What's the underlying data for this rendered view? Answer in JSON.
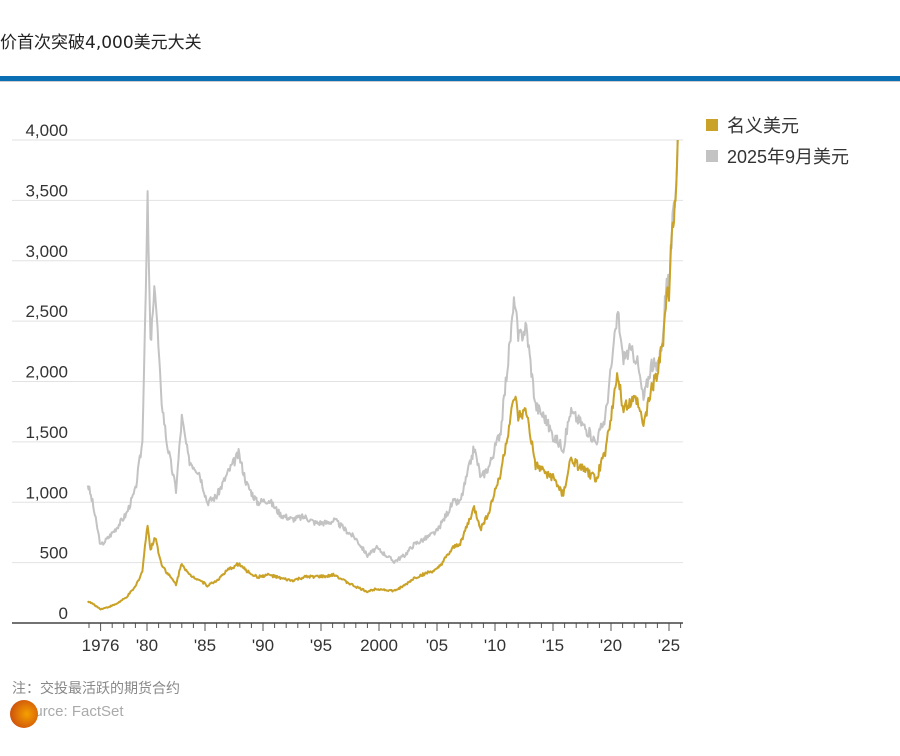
{
  "title": "价首次突破4,000美元大关",
  "legend": [
    {
      "label": "名义美元",
      "color": "#c9a227"
    },
    {
      "label": "2025年9月美元",
      "color": "#c3c3c3"
    }
  ],
  "note": "注：交投最活跃的期货合约",
  "source": "Source: FactSet",
  "chart_data": {
    "type": "line",
    "title": "价首次突破4,000美元大关",
    "xlabel": "",
    "ylabel": "",
    "ylim": [
      0,
      4000
    ],
    "xlim": [
      1974,
      2026.5
    ],
    "yticks": [
      0,
      500,
      1000,
      1500,
      2000,
      2500,
      3000,
      3500,
      4000
    ],
    "ytick_labels": [
      "0",
      "500",
      "1,000",
      "1,500",
      "2,000",
      "2,500",
      "3,000",
      "3,500",
      "4,000"
    ],
    "xticks": [
      1976,
      1980,
      1985,
      1990,
      1995,
      2000,
      2005,
      2010,
      2015,
      2020,
      2025
    ],
    "xtick_labels": [
      "1976",
      "'80",
      "'85",
      "'90",
      "'95",
      "2000",
      "'05",
      "'10",
      "'15",
      "'20",
      "'25"
    ],
    "grid": true,
    "legend_position": "top-right",
    "series": [
      {
        "name": "2025年9月美元",
        "color": "#c3c3c3",
        "x": [
          1974.9,
          1975.3,
          1976.0,
          1976.6,
          1977.3,
          1978.2,
          1979.0,
          1979.6,
          1980.05,
          1980.3,
          1980.7,
          1981.2,
          1981.7,
          1982.5,
          1983.0,
          1983.6,
          1984.5,
          1985.2,
          1986.0,
          1987.0,
          1987.9,
          1988.6,
          1989.5,
          1990.5,
          1991.5,
          1992.5,
          1993.6,
          1994.5,
          1995.5,
          1996.2,
          1997.0,
          1998.0,
          1999.0,
          1999.8,
          2000.5,
          2001.3,
          2002.2,
          2003.0,
          2004.0,
          2005.0,
          2006.4,
          2007.0,
          2008.2,
          2008.8,
          2009.5,
          2010.5,
          2011.7,
          2012.0,
          2012.7,
          2013.5,
          2014.3,
          2015.0,
          2015.9,
          2016.5,
          2017.5,
          2018.7,
          2019.5,
          2020.6,
          2021.0,
          2021.6,
          2022.2,
          2022.8,
          2023.5,
          2024.0,
          2024.5,
          2024.8,
          2025.0,
          2025.3,
          2025.5,
          2025.75
        ],
        "values": [
          1150,
          1000,
          640,
          700,
          780,
          900,
          1100,
          1500,
          3480,
          2300,
          2800,
          1900,
          1500,
          1100,
          1700,
          1350,
          1250,
          1000,
          1050,
          1250,
          1400,
          1150,
          1000,
          1020,
          900,
          860,
          880,
          830,
          830,
          850,
          780,
          700,
          560,
          620,
          570,
          510,
          560,
          650,
          700,
          760,
          1000,
          1000,
          1450,
          1200,
          1300,
          1600,
          2700,
          2350,
          2450,
          1800,
          1700,
          1550,
          1450,
          1750,
          1650,
          1500,
          1700,
          2580,
          2200,
          2250,
          2200,
          1850,
          2150,
          2100,
          2400,
          2900,
          2800,
          3300,
          3450,
          4000
        ]
      },
      {
        "name": "名义美元",
        "color": "#c9a227",
        "x": [
          1974.9,
          1975.3,
          1976.0,
          1976.6,
          1977.3,
          1978.2,
          1979.0,
          1979.6,
          1980.05,
          1980.3,
          1980.7,
          1981.2,
          1981.7,
          1982.5,
          1983.0,
          1983.6,
          1984.5,
          1985.2,
          1986.0,
          1987.0,
          1987.9,
          1988.6,
          1989.5,
          1990.5,
          1991.5,
          1992.5,
          1993.6,
          1994.5,
          1995.5,
          1996.2,
          1997.0,
          1998.0,
          1999.0,
          1999.8,
          2000.5,
          2001.3,
          2002.2,
          2003.0,
          2004.0,
          2005.0,
          2006.4,
          2007.0,
          2008.2,
          2008.8,
          2009.5,
          2010.5,
          2011.7,
          2012.0,
          2012.7,
          2013.5,
          2014.3,
          2015.0,
          2015.9,
          2016.5,
          2017.5,
          2018.7,
          2019.5,
          2020.6,
          2021.0,
          2021.6,
          2022.2,
          2022.8,
          2023.5,
          2024.0,
          2024.5,
          2024.8,
          2025.0,
          2025.3,
          2025.5,
          2025.75
        ],
        "values": [
          180,
          160,
          115,
          130,
          155,
          210,
          300,
          430,
          830,
          600,
          720,
          500,
          420,
          320,
          500,
          400,
          360,
          310,
          350,
          440,
          490,
          430,
          380,
          400,
          370,
          350,
          380,
          385,
          385,
          400,
          350,
          300,
          260,
          285,
          275,
          265,
          310,
          370,
          410,
          440,
          620,
          660,
          950,
          780,
          930,
          1250,
          1880,
          1700,
          1750,
          1300,
          1250,
          1200,
          1060,
          1350,
          1280,
          1190,
          1420,
          2060,
          1780,
          1820,
          1850,
          1640,
          1950,
          2050,
          2350,
          2750,
          2700,
          3300,
          3400,
          4000
        ]
      }
    ]
  }
}
